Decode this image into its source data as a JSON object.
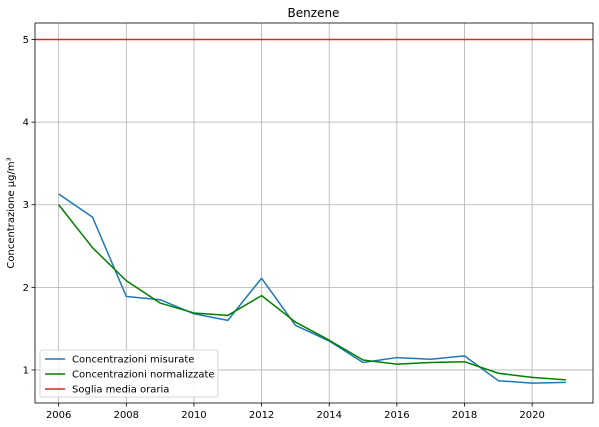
{
  "chart_data": {
    "type": "line",
    "title": "Benzene",
    "xlabel": "",
    "ylabel": "Concentrazione µg/m³",
    "xlim": [
      2005.3,
      2021.8
    ],
    "ylim": [
      0.6,
      5.2
    ],
    "xticks": [
      2006,
      2008,
      2010,
      2012,
      2014,
      2016,
      2018,
      2020
    ],
    "yticks": [
      1,
      2,
      3,
      4,
      5
    ],
    "grid": true,
    "legend_position": "lower-left",
    "x": [
      2006,
      2007,
      2008,
      2009,
      2010,
      2011,
      2012,
      2013,
      2014,
      2015,
      2016,
      2017,
      2018,
      2019,
      2020,
      2021
    ],
    "series": [
      {
        "name": "Concentrazioni misurate",
        "color": "#1f77b4",
        "values": [
          3.13,
          2.85,
          1.89,
          1.85,
          1.68,
          1.6,
          2.11,
          1.54,
          1.35,
          1.09,
          1.15,
          1.13,
          1.17,
          0.87,
          0.84,
          0.85
        ]
      },
      {
        "name": "Concentrazioni normalizzate",
        "color": "#008000",
        "values": [
          3.0,
          2.48,
          2.08,
          1.81,
          1.69,
          1.66,
          1.9,
          1.58,
          1.36,
          1.12,
          1.07,
          1.09,
          1.1,
          0.96,
          0.91,
          0.88
        ]
      }
    ],
    "threshold": {
      "name": "Soglia media oraria",
      "color": "#d62728",
      "value": 5
    }
  }
}
